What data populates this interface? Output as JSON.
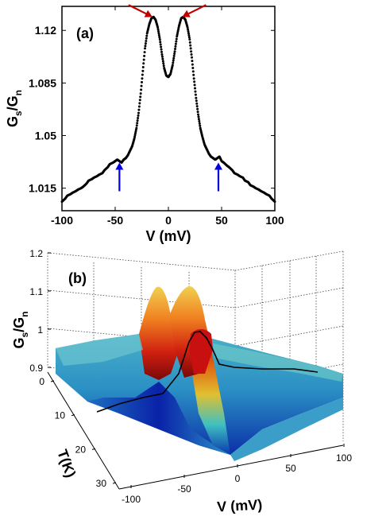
{
  "chart_data": [
    {
      "type": "scatter",
      "panel_label": "(a)",
      "xlabel": "V (mV)",
      "ylabel_main": "G",
      "ylabel_sub1": "s",
      "ylabel_mid": "/G",
      "ylabel_sub2": "n",
      "xlim": [
        -100,
        100
      ],
      "ylim": [
        1.0,
        1.136
      ],
      "x_ticks": [
        -100,
        -50,
        0,
        50,
        100
      ],
      "x_tick_labels": [
        "-100",
        "-50",
        "0",
        "50",
        "100"
      ],
      "y_ticks": [
        1.015,
        1.05,
        1.085,
        1.12
      ],
      "y_tick_labels": [
        "1.015",
        "1.05",
        "1.085",
        "1.12"
      ],
      "series": [
        {
          "x": [
            -100,
            -97,
            -95,
            -92,
            -90,
            -87,
            -85,
            -82,
            -80,
            -77,
            -75,
            -72,
            -70,
            -67,
            -65,
            -62,
            -60,
            -57,
            -55,
            -52,
            -50,
            -48,
            -46,
            -44,
            -42,
            -40,
            -38,
            -36,
            -34,
            -32,
            -30,
            -28,
            -26,
            -24,
            -22,
            -20,
            -18,
            -16,
            -14,
            -12,
            -10,
            -8,
            -6,
            -4,
            -2,
            0,
            2,
            4,
            6,
            8,
            10,
            12,
            14,
            16,
            18,
            20,
            22,
            24,
            26,
            28,
            30,
            32,
            34,
            36,
            38,
            40,
            42,
            44,
            46,
            48,
            50,
            52,
            55,
            57,
            60,
            62,
            65,
            67,
            70,
            72,
            75,
            77,
            80,
            82,
            85,
            87,
            90,
            92,
            95,
            97,
            100
          ],
          "y": [
            1.006,
            1.008,
            1.01,
            1.011,
            1.012,
            1.013,
            1.014,
            1.015,
            1.016,
            1.018,
            1.02,
            1.021,
            1.022,
            1.023,
            1.024,
            1.025,
            1.027,
            1.029,
            1.031,
            1.032,
            1.033,
            1.034,
            1.033,
            1.032,
            1.034,
            1.035,
            1.037,
            1.04,
            1.043,
            1.048,
            1.055,
            1.065,
            1.078,
            1.093,
            1.108,
            1.118,
            1.124,
            1.128,
            1.129,
            1.127,
            1.122,
            1.114,
            1.104,
            1.095,
            1.09,
            1.089,
            1.091,
            1.097,
            1.106,
            1.116,
            1.123,
            1.128,
            1.129,
            1.127,
            1.122,
            1.114,
            1.102,
            1.088,
            1.075,
            1.064,
            1.055,
            1.049,
            1.044,
            1.041,
            1.038,
            1.036,
            1.035,
            1.034,
            1.035,
            1.036,
            1.033,
            1.032,
            1.03,
            1.029,
            1.027,
            1.025,
            1.024,
            1.023,
            1.022,
            1.02,
            1.019,
            1.017,
            1.016,
            1.015,
            1.014,
            1.013,
            1.012,
            1.011,
            1.01,
            1.008,
            1.006
          ]
        }
      ],
      "arrows": [
        {
          "color": "#c00000",
          "target_x": -15,
          "target_y": 1.129,
          "direction": "from-upper-left"
        },
        {
          "color": "#c00000",
          "target_x": 13,
          "target_y": 1.129,
          "direction": "from-upper-right"
        },
        {
          "color": "#0000e0",
          "target_x": -46,
          "target_y": 1.032,
          "direction": "from-below"
        },
        {
          "color": "#0000e0",
          "target_x": 47,
          "target_y": 1.032,
          "direction": "from-below"
        }
      ]
    },
    {
      "type": "surface",
      "panel_label": "(b)",
      "xlabel": "V (mV)",
      "ylabel": "T(K)",
      "zlabel_main": "G",
      "zlabel_sub1": "s",
      "zlabel_mid": "/G",
      "zlabel_sub2": "n",
      "x_ticks": [
        -100,
        -50,
        0,
        50,
        100
      ],
      "x_tick_labels": [
        "-100",
        "-50",
        "0",
        "50",
        "100"
      ],
      "y_ticks": [
        0,
        10,
        20,
        30
      ],
      "y_tick_labels": [
        "0",
        "10",
        "20",
        "30"
      ],
      "z_ticks": [
        0.9,
        1.0,
        1.1,
        1.2
      ],
      "z_tick_labels": [
        "0.9",
        "1",
        "1.1",
        "1.2"
      ],
      "grid": true,
      "colormap": [
        "#00008f",
        "#0040ff",
        "#00c0ff",
        "#40ffc0",
        "#c0ff40",
        "#ffc000",
        "#ff4000",
        "#a00000"
      ]
    }
  ]
}
